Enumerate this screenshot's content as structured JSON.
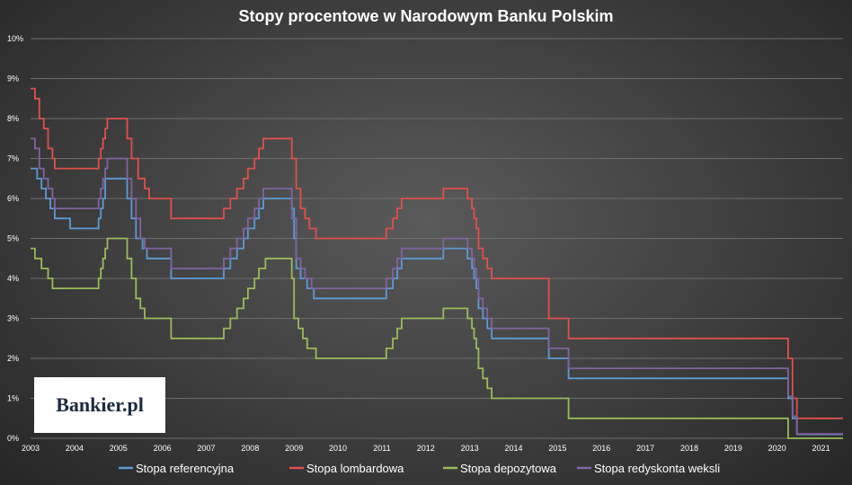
{
  "chart_data": {
    "type": "line",
    "title": "Stopy procentowe w Narodowym Banku Polskim",
    "xlabel": "",
    "ylabel": "",
    "xlim": [
      2003.0,
      2021.5
    ],
    "ylim": [
      0,
      10
    ],
    "x_ticks": [
      "2003",
      "2004",
      "2005",
      "2006",
      "2007",
      "2008",
      "2009",
      "2010",
      "2011",
      "2012",
      "2013",
      "2014",
      "2015",
      "2016",
      "2017",
      "2018",
      "2019",
      "2020",
      "2021"
    ],
    "y_ticks": [
      "0%",
      "1%",
      "2%",
      "3%",
      "4%",
      "5%",
      "6%",
      "7%",
      "8%",
      "9%",
      "10%"
    ],
    "step": true,
    "grid": "horizontal",
    "legend_position": "bottom",
    "series": [
      {
        "name": "Stopa referencyjna",
        "color": "#5b9bd5",
        "points": [
          [
            2003.0,
            6.75
          ],
          [
            2003.15,
            6.5
          ],
          [
            2003.25,
            6.25
          ],
          [
            2003.35,
            6.0
          ],
          [
            2003.45,
            5.75
          ],
          [
            2003.55,
            5.5
          ],
          [
            2003.9,
            5.25
          ],
          [
            2004.5,
            5.25
          ],
          [
            2004.55,
            5.5
          ],
          [
            2004.6,
            5.75
          ],
          [
            2004.65,
            6.0
          ],
          [
            2004.7,
            6.5
          ],
          [
            2005.1,
            6.5
          ],
          [
            2005.2,
            6.0
          ],
          [
            2005.3,
            5.5
          ],
          [
            2005.4,
            5.0
          ],
          [
            2005.55,
            4.75
          ],
          [
            2005.65,
            4.5
          ],
          [
            2006.1,
            4.5
          ],
          [
            2006.2,
            4.0
          ],
          [
            2007.3,
            4.0
          ],
          [
            2007.4,
            4.25
          ],
          [
            2007.55,
            4.5
          ],
          [
            2007.7,
            4.75
          ],
          [
            2007.85,
            5.0
          ],
          [
            2007.95,
            5.25
          ],
          [
            2008.1,
            5.5
          ],
          [
            2008.2,
            5.75
          ],
          [
            2008.3,
            6.0
          ],
          [
            2008.8,
            6.0
          ],
          [
            2008.95,
            5.75
          ],
          [
            2009.0,
            5.0
          ],
          [
            2009.05,
            4.25
          ],
          [
            2009.15,
            4.0
          ],
          [
            2009.3,
            3.75
          ],
          [
            2009.45,
            3.5
          ],
          [
            2011.05,
            3.5
          ],
          [
            2011.1,
            3.75
          ],
          [
            2011.25,
            4.0
          ],
          [
            2011.35,
            4.25
          ],
          [
            2011.45,
            4.5
          ],
          [
            2012.35,
            4.5
          ],
          [
            2012.4,
            4.75
          ],
          [
            2012.85,
            4.75
          ],
          [
            2012.95,
            4.5
          ],
          [
            2013.05,
            4.25
          ],
          [
            2013.1,
            4.0
          ],
          [
            2013.15,
            3.75
          ],
          [
            2013.2,
            3.25
          ],
          [
            2013.3,
            3.0
          ],
          [
            2013.4,
            2.75
          ],
          [
            2013.5,
            2.5
          ],
          [
            2014.75,
            2.5
          ],
          [
            2014.8,
            2.0
          ],
          [
            2015.2,
            2.0
          ],
          [
            2015.25,
            1.5
          ],
          [
            2020.2,
            1.5
          ],
          [
            2020.25,
            1.0
          ],
          [
            2020.35,
            0.5
          ],
          [
            2020.45,
            0.1
          ],
          [
            2021.5,
            0.1
          ]
        ]
      },
      {
        "name": "Stopa lombardowa",
        "color": "#e0504b",
        "points": [
          [
            2003.0,
            8.75
          ],
          [
            2003.1,
            8.5
          ],
          [
            2003.2,
            8.0
          ],
          [
            2003.3,
            7.75
          ],
          [
            2003.4,
            7.25
          ],
          [
            2003.5,
            7.0
          ],
          [
            2003.55,
            6.75
          ],
          [
            2004.5,
            6.75
          ],
          [
            2004.55,
            7.0
          ],
          [
            2004.6,
            7.25
          ],
          [
            2004.65,
            7.5
          ],
          [
            2004.7,
            7.75
          ],
          [
            2004.75,
            8.0
          ],
          [
            2005.1,
            8.0
          ],
          [
            2005.2,
            7.5
          ],
          [
            2005.3,
            7.0
          ],
          [
            2005.45,
            6.5
          ],
          [
            2005.6,
            6.25
          ],
          [
            2005.7,
            6.0
          ],
          [
            2006.1,
            6.0
          ],
          [
            2006.2,
            5.5
          ],
          [
            2007.3,
            5.5
          ],
          [
            2007.4,
            5.75
          ],
          [
            2007.55,
            6.0
          ],
          [
            2007.7,
            6.25
          ],
          [
            2007.85,
            6.5
          ],
          [
            2007.95,
            6.75
          ],
          [
            2008.1,
            7.0
          ],
          [
            2008.2,
            7.25
          ],
          [
            2008.3,
            7.5
          ],
          [
            2008.8,
            7.5
          ],
          [
            2008.95,
            7.0
          ],
          [
            2009.05,
            6.25
          ],
          [
            2009.15,
            5.75
          ],
          [
            2009.25,
            5.5
          ],
          [
            2009.35,
            5.25
          ],
          [
            2009.5,
            5.0
          ],
          [
            2011.05,
            5.0
          ],
          [
            2011.1,
            5.25
          ],
          [
            2011.25,
            5.5
          ],
          [
            2011.35,
            5.75
          ],
          [
            2011.45,
            6.0
          ],
          [
            2012.35,
            6.0
          ],
          [
            2012.4,
            6.25
          ],
          [
            2012.85,
            6.25
          ],
          [
            2012.95,
            6.0
          ],
          [
            2013.05,
            5.75
          ],
          [
            2013.1,
            5.5
          ],
          [
            2013.15,
            5.25
          ],
          [
            2013.2,
            4.75
          ],
          [
            2013.3,
            4.5
          ],
          [
            2013.4,
            4.25
          ],
          [
            2013.5,
            4.0
          ],
          [
            2014.75,
            4.0
          ],
          [
            2014.8,
            3.0
          ],
          [
            2015.2,
            3.0
          ],
          [
            2015.25,
            2.5
          ],
          [
            2020.2,
            2.5
          ],
          [
            2020.25,
            2.0
          ],
          [
            2020.35,
            1.0
          ],
          [
            2020.45,
            0.5
          ],
          [
            2021.5,
            0.5
          ]
        ]
      },
      {
        "name": "Stopa depozytowa",
        "color": "#9bbb59",
        "points": [
          [
            2003.0,
            4.75
          ],
          [
            2003.1,
            4.5
          ],
          [
            2003.25,
            4.25
          ],
          [
            2003.4,
            4.0
          ],
          [
            2003.5,
            3.75
          ],
          [
            2004.5,
            3.75
          ],
          [
            2004.55,
            4.0
          ],
          [
            2004.6,
            4.25
          ],
          [
            2004.65,
            4.5
          ],
          [
            2004.7,
            4.75
          ],
          [
            2004.75,
            5.0
          ],
          [
            2005.1,
            5.0
          ],
          [
            2005.2,
            4.5
          ],
          [
            2005.3,
            4.0
          ],
          [
            2005.4,
            3.5
          ],
          [
            2005.5,
            3.25
          ],
          [
            2005.6,
            3.0
          ],
          [
            2006.1,
            3.0
          ],
          [
            2006.2,
            2.5
          ],
          [
            2007.3,
            2.5
          ],
          [
            2007.4,
            2.75
          ],
          [
            2007.55,
            3.0
          ],
          [
            2007.7,
            3.25
          ],
          [
            2007.85,
            3.5
          ],
          [
            2007.95,
            3.75
          ],
          [
            2008.1,
            4.0
          ],
          [
            2008.2,
            4.25
          ],
          [
            2008.35,
            4.5
          ],
          [
            2008.8,
            4.5
          ],
          [
            2008.95,
            4.0
          ],
          [
            2009.0,
            3.0
          ],
          [
            2009.1,
            2.75
          ],
          [
            2009.2,
            2.5
          ],
          [
            2009.3,
            2.25
          ],
          [
            2009.5,
            2.0
          ],
          [
            2011.05,
            2.0
          ],
          [
            2011.1,
            2.25
          ],
          [
            2011.25,
            2.5
          ],
          [
            2011.35,
            2.75
          ],
          [
            2011.45,
            3.0
          ],
          [
            2012.35,
            3.0
          ],
          [
            2012.4,
            3.25
          ],
          [
            2012.85,
            3.25
          ],
          [
            2012.95,
            3.0
          ],
          [
            2013.05,
            2.75
          ],
          [
            2013.1,
            2.5
          ],
          [
            2013.15,
            2.25
          ],
          [
            2013.2,
            1.75
          ],
          [
            2013.3,
            1.5
          ],
          [
            2013.4,
            1.25
          ],
          [
            2013.5,
            1.0
          ],
          [
            2015.2,
            1.0
          ],
          [
            2015.25,
            0.5
          ],
          [
            2020.2,
            0.5
          ],
          [
            2020.25,
            0.0
          ],
          [
            2021.5,
            0.0
          ]
        ]
      },
      {
        "name": "Stopa redyskonta weksli",
        "color": "#8064a2",
        "points": [
          [
            2003.0,
            7.5
          ],
          [
            2003.1,
            7.25
          ],
          [
            2003.2,
            6.75
          ],
          [
            2003.3,
            6.5
          ],
          [
            2003.4,
            6.25
          ],
          [
            2003.5,
            6.0
          ],
          [
            2003.55,
            5.75
          ],
          [
            2004.5,
            5.75
          ],
          [
            2004.55,
            6.0
          ],
          [
            2004.6,
            6.25
          ],
          [
            2004.65,
            6.5
          ],
          [
            2004.7,
            6.75
          ],
          [
            2004.75,
            7.0
          ],
          [
            2005.1,
            7.0
          ],
          [
            2005.2,
            6.5
          ],
          [
            2005.3,
            6.0
          ],
          [
            2005.4,
            5.5
          ],
          [
            2005.5,
            5.0
          ],
          [
            2005.6,
            4.75
          ],
          [
            2006.1,
            4.75
          ],
          [
            2006.2,
            4.25
          ],
          [
            2007.3,
            4.25
          ],
          [
            2007.4,
            4.5
          ],
          [
            2007.55,
            4.75
          ],
          [
            2007.7,
            5.0
          ],
          [
            2007.85,
            5.25
          ],
          [
            2007.95,
            5.5
          ],
          [
            2008.1,
            5.75
          ],
          [
            2008.2,
            6.0
          ],
          [
            2008.3,
            6.25
          ],
          [
            2008.8,
            6.25
          ],
          [
            2008.95,
            5.5
          ],
          [
            2009.05,
            4.5
          ],
          [
            2009.15,
            4.25
          ],
          [
            2009.25,
            4.0
          ],
          [
            2009.4,
            3.75
          ],
          [
            2011.05,
            3.75
          ],
          [
            2011.1,
            4.0
          ],
          [
            2011.25,
            4.25
          ],
          [
            2011.35,
            4.5
          ],
          [
            2011.45,
            4.75
          ],
          [
            2012.35,
            4.75
          ],
          [
            2012.4,
            5.0
          ],
          [
            2012.85,
            5.0
          ],
          [
            2012.95,
            4.75
          ],
          [
            2013.05,
            4.5
          ],
          [
            2013.1,
            4.25
          ],
          [
            2013.15,
            4.0
          ],
          [
            2013.2,
            3.5
          ],
          [
            2013.3,
            3.25
          ],
          [
            2013.4,
            3.0
          ],
          [
            2013.5,
            2.75
          ],
          [
            2014.75,
            2.75
          ],
          [
            2014.8,
            2.25
          ],
          [
            2015.2,
            2.25
          ],
          [
            2015.25,
            1.75
          ],
          [
            2020.2,
            1.75
          ],
          [
            2020.25,
            1.05
          ],
          [
            2020.35,
            0.55
          ],
          [
            2020.45,
            0.11
          ],
          [
            2021.5,
            0.11
          ]
        ]
      }
    ]
  },
  "logo": {
    "text": "Bankier.pl"
  }
}
